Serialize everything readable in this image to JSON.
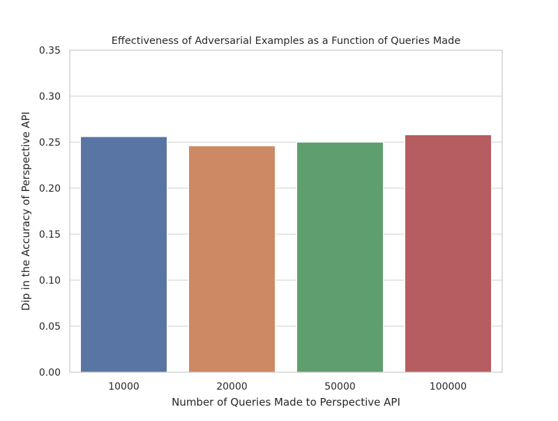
{
  "chart_data": {
    "type": "bar",
    "title": "Effectiveness of Adversarial Examples as a Function of Queries Made",
    "xlabel": "Number of Queries Made to Perspective API",
    "ylabel": "Dip in the Accuracy of Perspective API",
    "categories": [
      "10000",
      "20000",
      "50000",
      "100000"
    ],
    "values": [
      0.256,
      0.246,
      0.25,
      0.258
    ],
    "colors": [
      "#5975a4",
      "#cc8963",
      "#5f9e6e",
      "#b55d60"
    ],
    "ylim": [
      0,
      0.35
    ],
    "yticks": [
      "0.00",
      "0.05",
      "0.10",
      "0.15",
      "0.20",
      "0.25",
      "0.30",
      "0.35"
    ],
    "grid": "horizontal",
    "legend": "none"
  }
}
